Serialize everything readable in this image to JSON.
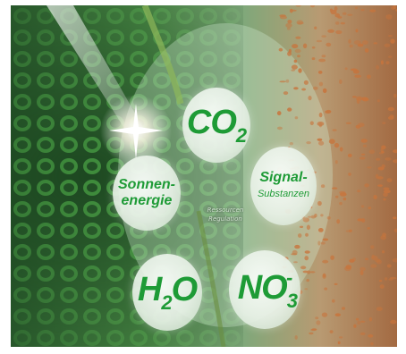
{
  "nodes": {
    "co2": {
      "base": "CO",
      "sub": "2"
    },
    "sonnenenergie": {
      "line1": "Sonnen-",
      "line2": "energie"
    },
    "signal": {
      "line1": "Signal-",
      "line2": "Substanzen"
    },
    "h2o": {
      "base1": "H",
      "sub": "2",
      "base2": "O"
    },
    "no3": {
      "base": "NO",
      "sub": "3",
      "sup": "-"
    }
  },
  "center_label": {
    "line1": "Ressourcen",
    "line2": "Regulation"
  },
  "colors": {
    "text_green": "#1e9b36",
    "bubble_fill": "#eef5ee",
    "foliage_dark": "#1f4d25",
    "foliage_bright": "#58b84a",
    "pollen_orange": "#c8743c"
  }
}
